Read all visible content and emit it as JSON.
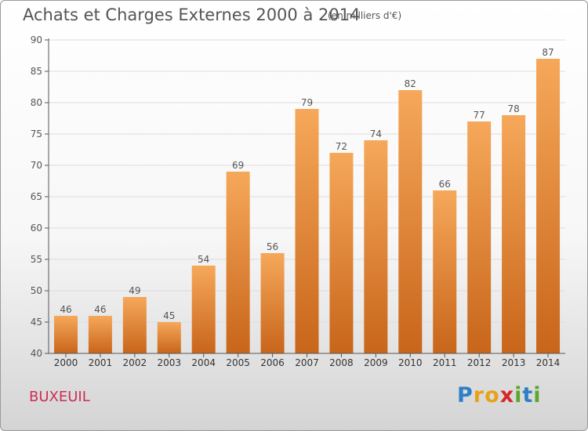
{
  "title": "Achats et Charges Externes 2000 à 2014",
  "subtitle": "(en milliers d'€)",
  "commune": "BUXEUIL",
  "logo": {
    "text": "Proxiti",
    "letters": [
      "P",
      "r",
      "o",
      "x",
      "i",
      "t",
      "i"
    ],
    "colors": [
      "#2e7fc7",
      "#e8a21a",
      "#e8a21a",
      "#d6262a",
      "#5aa82c",
      "#2e7fc7",
      "#5aa82c"
    ]
  },
  "colors": {
    "bar_top": "#f6a85a",
    "bar_bottom": "#c8651a",
    "axis": "#555555",
    "grid": "#dddddd"
  },
  "chart_data": {
    "type": "bar",
    "categories": [
      "2000",
      "2001",
      "2002",
      "2003",
      "2004",
      "2005",
      "2006",
      "2007",
      "2008",
      "2009",
      "2010",
      "2011",
      "2012",
      "2013",
      "2014"
    ],
    "values": [
      46,
      46,
      49,
      45,
      54,
      69,
      56,
      79,
      72,
      74,
      82,
      66,
      77,
      78,
      87
    ],
    "ylim": [
      40,
      90
    ],
    "yticks": [
      40,
      45,
      50,
      55,
      60,
      65,
      70,
      75,
      80,
      85,
      90
    ],
    "grid": true,
    "data_labels": true
  }
}
